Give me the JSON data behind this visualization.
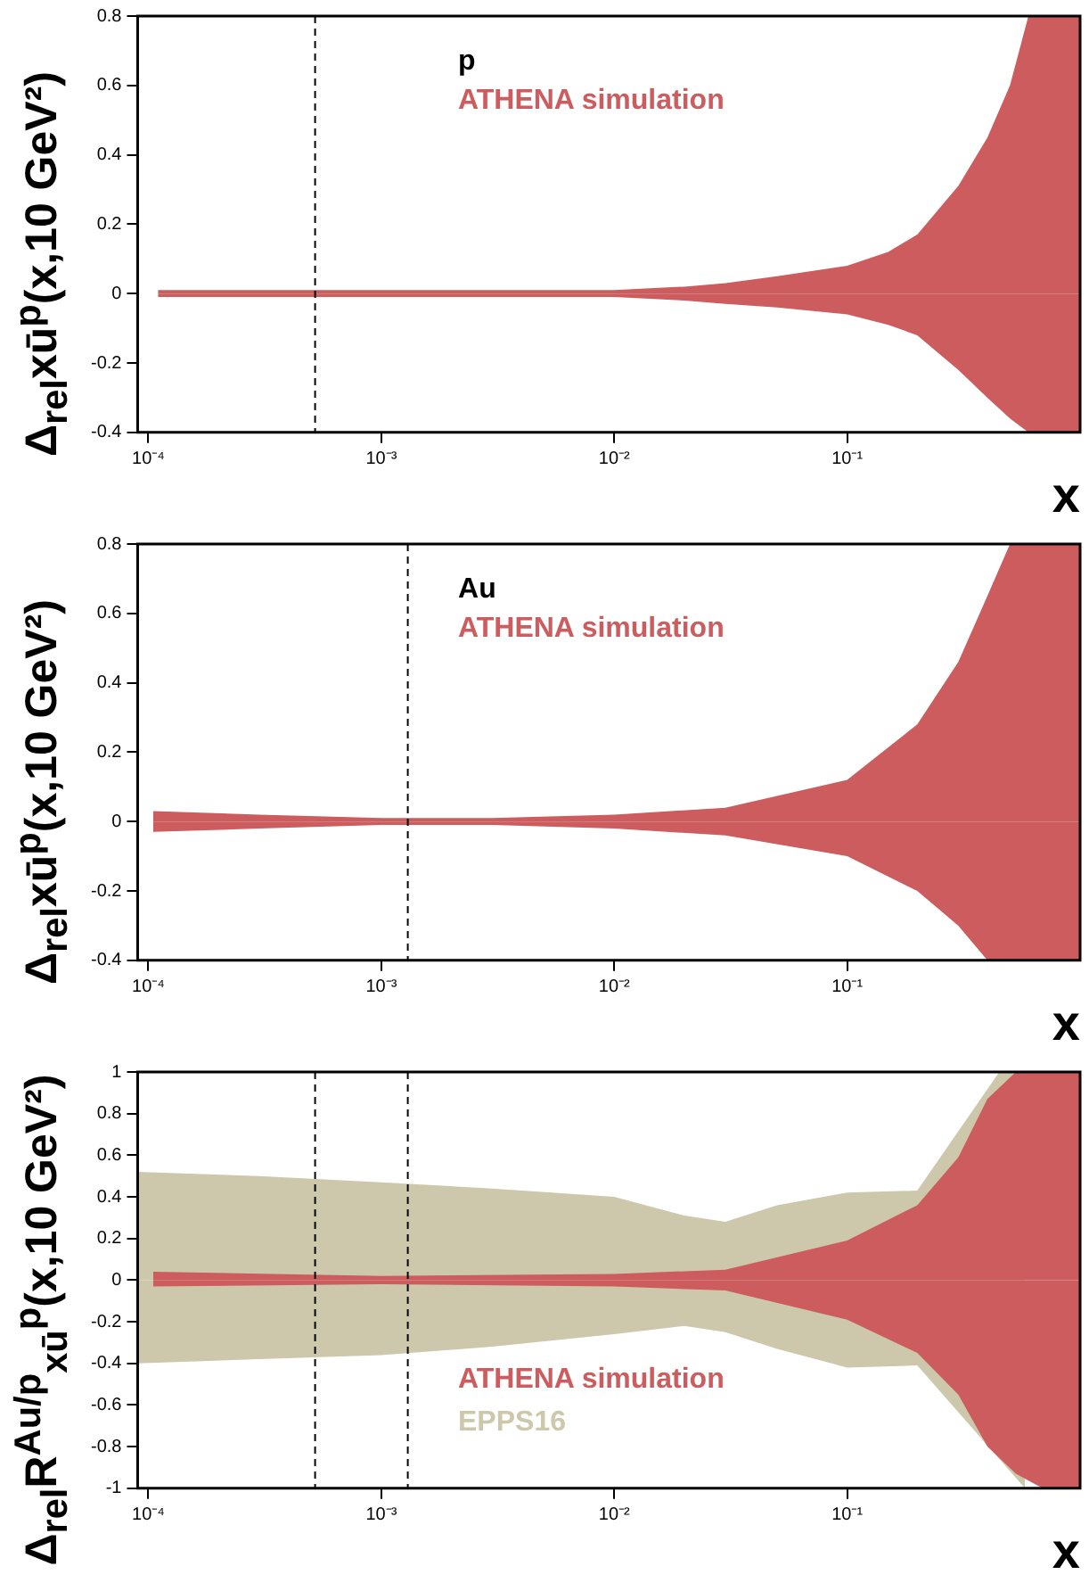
{
  "chart_data": [
    {
      "type": "area",
      "xlabel": "x",
      "ylabel": "Δ$_{rel}$xū$^{p}$(x,10 GeV²)",
      "annotations": [
        "p"
      ],
      "log": "x",
      "grid": false,
      "marker": "none",
      "xlim": [
        9e-05,
        1
      ],
      "xticks": [
        {
          "value": 0.0001,
          "label": "10⁻⁴"
        },
        {
          "value": 0.001,
          "label": "10⁻³"
        },
        {
          "value": 0.01,
          "label": "10⁻²"
        },
        {
          "value": 0.1,
          "label": "10⁻¹"
        }
      ],
      "ylim": [
        -0.4,
        0.8
      ],
      "yticks": [
        -0.4,
        -0.2,
        0,
        0.2,
        0.4,
        0.6,
        0.8
      ],
      "ref_lines": [
        {
          "axis": "x",
          "value": 0.00052,
          "color": "#000000",
          "line_style": "dashed"
        }
      ],
      "series": [
        {
          "name": "ATHENA simulation",
          "color": "#cc5c5e",
          "x": [
            0.00011,
            0.0003,
            0.001,
            0.003,
            0.01,
            0.02,
            0.03,
            0.05,
            0.1,
            0.15,
            0.2,
            0.3,
            0.4,
            0.5,
            0.6,
            1
          ],
          "values": [
            0.01,
            0.01,
            0.01,
            0.01,
            0.01,
            0.02,
            0.03,
            0.05,
            0.08,
            0.12,
            0.17,
            0.31,
            0.45,
            0.6,
            0.8,
            0.8
          ]
        },
        {
          "color": "#cc5c5e",
          "x": [
            0.00011,
            0.0003,
            0.001,
            0.003,
            0.01,
            0.02,
            0.03,
            0.05,
            0.1,
            0.15,
            0.2,
            0.3,
            0.4,
            0.5,
            0.6,
            1
          ],
          "values": [
            -0.01,
            -0.01,
            -0.01,
            -0.01,
            -0.01,
            -0.02,
            -0.03,
            -0.04,
            -0.06,
            -0.09,
            -0.12,
            -0.22,
            -0.3,
            -0.36,
            -0.4,
            -0.4
          ]
        }
      ]
    },
    {
      "type": "area",
      "xlabel": "x",
      "ylabel": "Δ$_{rel}$xū$^{p}$(x,10 GeV²)",
      "annotations": [
        "Au"
      ],
      "log": "x",
      "grid": false,
      "marker": "none",
      "xlim": [
        9e-05,
        1
      ],
      "xticks": [
        {
          "value": 0.0001,
          "label": "10⁻⁴"
        },
        {
          "value": 0.001,
          "label": "10⁻³"
        },
        {
          "value": 0.01,
          "label": "10⁻²"
        },
        {
          "value": 0.1,
          "label": "10⁻¹"
        }
      ],
      "ylim": [
        -0.4,
        0.8
      ],
      "yticks": [
        -0.4,
        -0.2,
        0,
        0.2,
        0.4,
        0.6,
        0.8
      ],
      "ref_lines": [
        {
          "axis": "x",
          "value": 0.0013,
          "color": "#000000",
          "line_style": "dashed"
        }
      ],
      "series": [
        {
          "name": "ATHENA simulation",
          "color": "#cc5c5e",
          "x": [
            0.000105,
            0.0003,
            0.001,
            0.003,
            0.01,
            0.03,
            0.1,
            0.2,
            0.3,
            0.4,
            0.5,
            1
          ],
          "values": [
            0.03,
            0.02,
            0.01,
            0.01,
            0.02,
            0.04,
            0.12,
            0.28,
            0.46,
            0.65,
            0.8,
            0.8
          ]
        },
        {
          "color": "#cc5c5e",
          "x": [
            0.000105,
            0.0003,
            0.001,
            0.003,
            0.01,
            0.03,
            0.1,
            0.2,
            0.3,
            0.4,
            0.5,
            1
          ],
          "values": [
            -0.03,
            -0.02,
            -0.01,
            -0.01,
            -0.02,
            -0.04,
            -0.1,
            -0.2,
            -0.3,
            -0.4,
            -0.4,
            -0.4
          ]
        }
      ]
    },
    {
      "type": "area",
      "xlabel": "x",
      "ylabel": "Δ$_{rel}$R$^{Au/p}$$_{xū}$$^{p}$(x,10 GeV²)",
      "log": "x",
      "grid": false,
      "marker": "none",
      "xlim": [
        9e-05,
        1
      ],
      "xticks": [
        {
          "value": 0.0001,
          "label": "10⁻⁴"
        },
        {
          "value": 0.001,
          "label": "10⁻³"
        },
        {
          "value": 0.01,
          "label": "10⁻²"
        },
        {
          "value": 0.1,
          "label": "10⁻¹"
        }
      ],
      "ylim": [
        -1,
        1
      ],
      "yticks": [
        -1,
        -0.8,
        -0.6,
        -0.4,
        -0.2,
        0,
        0.2,
        0.4,
        0.6,
        0.8,
        1
      ],
      "ref_lines": [
        {
          "axis": "x",
          "value": 0.00052,
          "color": "#000000",
          "line_style": "dashed"
        },
        {
          "axis": "x",
          "value": 0.0013,
          "color": "#000000",
          "line_style": "dashed"
        }
      ],
      "series": [
        {
          "name": "ATHENA simulation",
          "color": "#cc5c5e",
          "x": [
            0.000105,
            0.001,
            0.01,
            0.03,
            0.1,
            0.2,
            0.3,
            0.4,
            0.53,
            0.69,
            1
          ],
          "values": [
            0.04,
            0.02,
            0.03,
            0.05,
            0.19,
            0.36,
            0.59,
            0.87,
            1,
            1,
            1
          ]
        },
        {
          "color": "#cc5c5e",
          "x": [
            0.000105,
            0.001,
            0.01,
            0.03,
            0.1,
            0.2,
            0.3,
            0.4,
            0.53,
            0.69,
            1
          ],
          "values": [
            -0.03,
            -0.02,
            -0.03,
            -0.05,
            -0.19,
            -0.35,
            -0.55,
            -0.8,
            -0.93,
            -1,
            -1
          ]
        },
        {
          "name": "EPPS16",
          "color": "#cdc8ab",
          "x": [
            9e-05,
            0.0003,
            0.001,
            0.003,
            0.01,
            0.02,
            0.03,
            0.05,
            0.1,
            0.2,
            0.3,
            0.35,
            0.4,
            0.45,
            0.5,
            0.58
          ],
          "values": [
            0.52,
            0.5,
            0.47,
            0.44,
            0.4,
            0.31,
            0.28,
            0.36,
            0.42,
            0.43,
            null,
            null,
            null,
            1,
            1,
            1
          ]
        },
        {
          "color": "#cdc8ab",
          "x": [
            9e-05,
            0.0003,
            0.001,
            0.003,
            0.01,
            0.02,
            0.03,
            0.05,
            0.1,
            0.2,
            0.3,
            0.35,
            0.4,
            0.45,
            0.5,
            0.58
          ],
          "values": [
            -0.4,
            -0.38,
            -0.36,
            -0.32,
            -0.26,
            -0.22,
            -0.25,
            -0.33,
            -0.42,
            -0.41,
            null,
            null,
            null,
            null,
            null,
            -1
          ]
        }
      ]
    }
  ]
}
